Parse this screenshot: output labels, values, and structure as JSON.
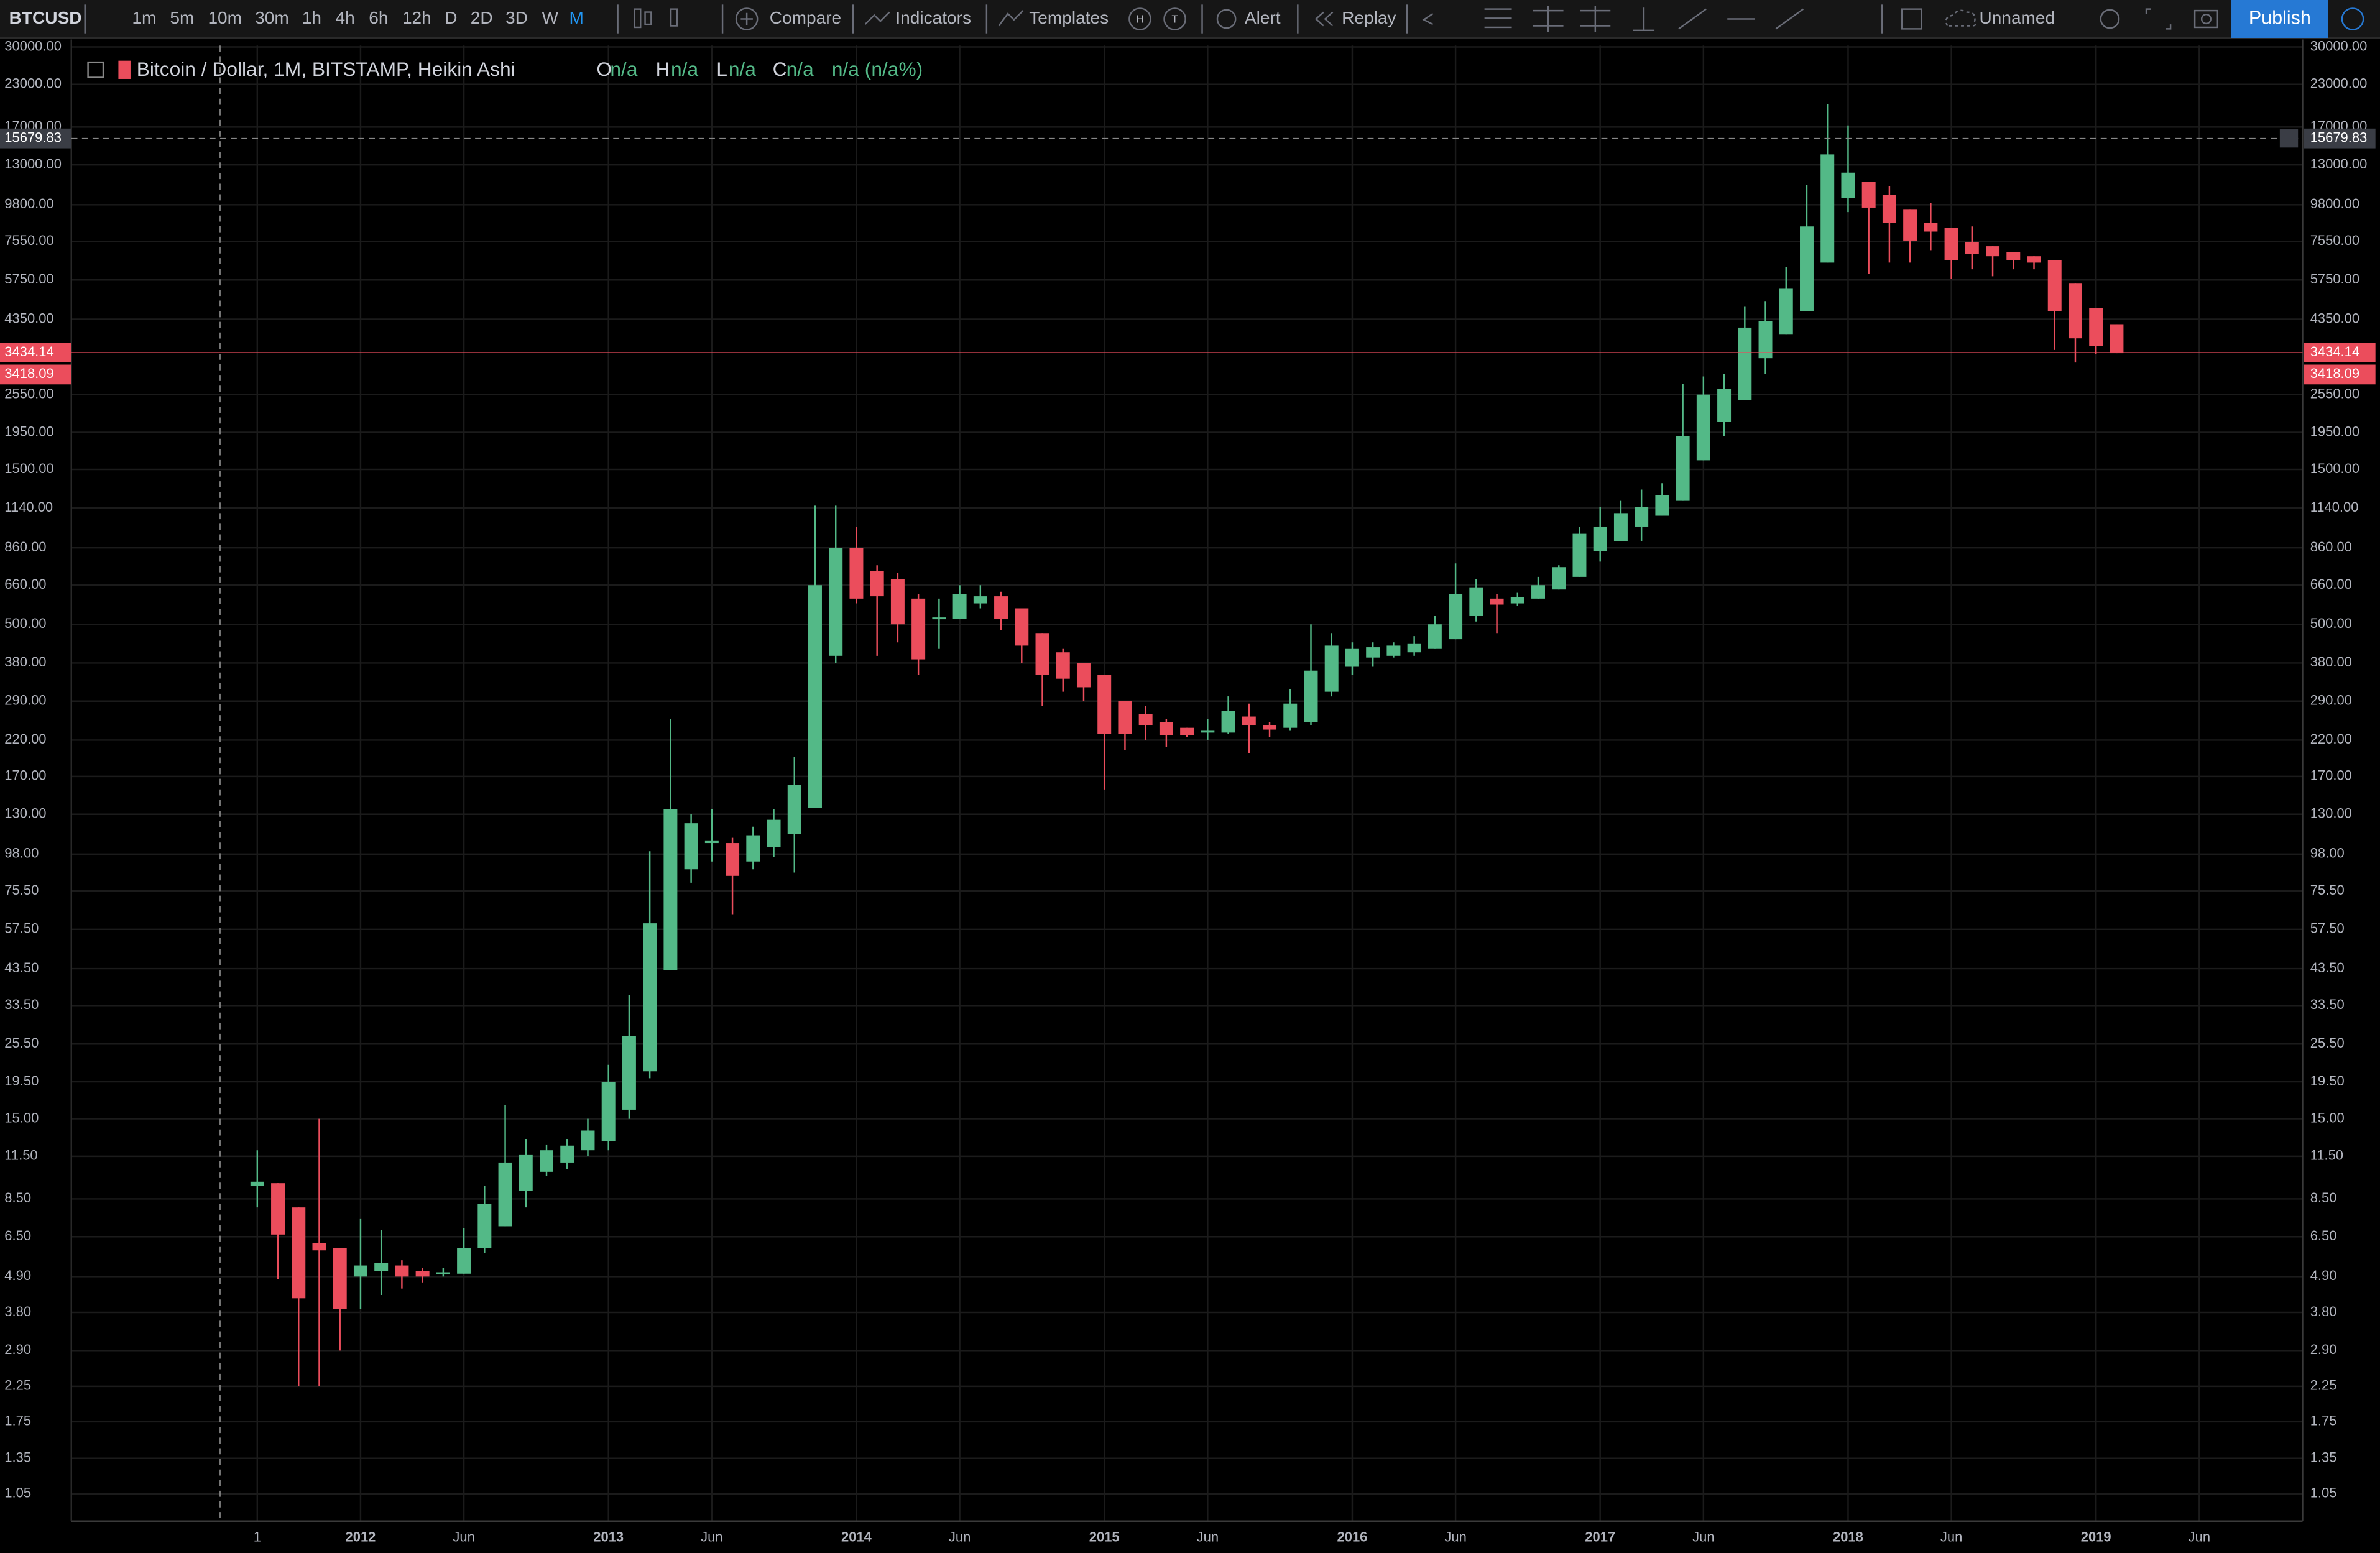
{
  "toolbar": {
    "symbol": "BTCUSD",
    "intervals": [
      "1m",
      "5m",
      "10m",
      "30m",
      "1h",
      "4h",
      "6h",
      "12h",
      "D",
      "2D",
      "3D",
      "W",
      "M"
    ],
    "compare": "Compare",
    "indicators": "Indicators",
    "templates": "Templates",
    "hotkey_h": "H",
    "hotkey_t": "T",
    "alert": "Alert",
    "replay": "Replay",
    "layout_name": "Unnamed",
    "publish": "Publish"
  },
  "chart_data": {
    "type": "candlestick",
    "title": "Bitcoin / Dollar, 1M, BITSTAMP, Heikin Ashi",
    "legend": [
      {
        "label": "O",
        "value": "n/a"
      },
      {
        "label": "H",
        "value": "n/a"
      },
      {
        "label": "L",
        "value": "n/a"
      },
      {
        "label": "C",
        "value": "n/a"
      }
    ],
    "change": "n/a (n/a%)",
    "up_color": "#53b987",
    "down_color": "#eb4d5c",
    "log_scale": true,
    "grid": true,
    "x": [
      "2011-08",
      "2011-09",
      "2011-10",
      "2011-11",
      "2011-12",
      "2012-01",
      "2012-02",
      "2012-03",
      "2012-04",
      "2012-05",
      "2012-06",
      "2012-07",
      "2012-08",
      "2012-09",
      "2012-10",
      "2012-11",
      "2012-12",
      "2013-01",
      "2013-02",
      "2013-03",
      "2013-04",
      "2013-05",
      "2013-06",
      "2013-07",
      "2013-08",
      "2013-09",
      "2013-10",
      "2013-11",
      "2013-12",
      "2014-01",
      "2014-02",
      "2014-03",
      "2014-04",
      "2014-05",
      "2014-06",
      "2014-07",
      "2014-08",
      "2014-09",
      "2014-10",
      "2014-11",
      "2014-12",
      "2015-01",
      "2015-02",
      "2015-03",
      "2015-04",
      "2015-05",
      "2015-06",
      "2015-07",
      "2015-08",
      "2015-09",
      "2015-10",
      "2015-11",
      "2015-12",
      "2016-01",
      "2016-02",
      "2016-03",
      "2016-04",
      "2016-05",
      "2016-06",
      "2016-07",
      "2016-08",
      "2016-09",
      "2016-10",
      "2016-11",
      "2016-12",
      "2017-01",
      "2017-02",
      "2017-03",
      "2017-04",
      "2017-05",
      "2017-06",
      "2017-07",
      "2017-08",
      "2017-09",
      "2017-10",
      "2017-11",
      "2017-12",
      "2018-01",
      "2018-02",
      "2018-03",
      "2018-04",
      "2018-05",
      "2018-06",
      "2018-07",
      "2018-08",
      "2018-09",
      "2018-10",
      "2018-11",
      "2018-12",
      "2019-01",
      "2019-02"
    ],
    "open": [
      9.3,
      9.5,
      8,
      6.2,
      6,
      4.9,
      5.1,
      5.3,
      5.1,
      5.0,
      5.0,
      6.0,
      7,
      9,
      10.3,
      11,
      12,
      12.8,
      16,
      21,
      43,
      88,
      106,
      106,
      93,
      103,
      113,
      136,
      400,
      860,
      730,
      690,
      600,
      520,
      520,
      580,
      610,
      560,
      470,
      410,
      380,
      350,
      290,
      265,
      250,
      240,
      232,
      232,
      260,
      245,
      240,
      250,
      310,
      370,
      395,
      400,
      410,
      420,
      450,
      530,
      600,
      580,
      600,
      640,
      700,
      840,
      900,
      1000,
      1080,
      1200,
      1600,
      2100,
      2450,
      3300,
      3900,
      4600,
      6500,
      10300,
      11500,
      10500,
      9500,
      8600,
      8300,
      7500,
      7300,
      7000,
      6800,
      6600,
      5600,
      4700,
      4200
    ],
    "high": [
      12,
      9.5,
      8,
      15,
      6,
      7.4,
      6.8,
      5.5,
      5.2,
      5.2,
      6.9,
      9.3,
      16.5,
      13,
      12.5,
      13,
      15,
      22,
      36,
      100,
      255,
      130,
      135,
      110,
      119,
      135,
      195,
      1160,
      1160,
      1000,
      760,
      720,
      620,
      600,
      660,
      660,
      630,
      560,
      470,
      420,
      380,
      350,
      290,
      280,
      255,
      240,
      255,
      300,
      285,
      250,
      315,
      500,
      470,
      440,
      440,
      440,
      460,
      530,
      770,
      690,
      620,
      625,
      700,
      760,
      1000,
      1150,
      1200,
      1300,
      1360,
      2750,
      2900,
      2950,
      4750,
      4950,
      6300,
      11300,
      20000,
      17200,
      11500,
      11200,
      9500,
      9900,
      8300,
      8400,
      7300,
      7000,
      6800,
      6600,
      5600,
      4700,
      4200
    ],
    "low": [
      8,
      4.8,
      2.25,
      2.25,
      2.9,
      3.9,
      4.3,
      4.5,
      4.7,
      4.9,
      5.0,
      5.8,
      7,
      8,
      10,
      10.5,
      11.5,
      12,
      15,
      20,
      43,
      80,
      93,
      64,
      88,
      96,
      86,
      136,
      380,
      580,
      400,
      440,
      350,
      420,
      520,
      560,
      480,
      380,
      280,
      310,
      290,
      155,
      205,
      220,
      210,
      225,
      220,
      230,
      200,
      225,
      235,
      245,
      300,
      350,
      370,
      395,
      400,
      420,
      450,
      510,
      470,
      570,
      600,
      640,
      700,
      780,
      900,
      900,
      1080,
      1200,
      1600,
      1900,
      2450,
      2950,
      3900,
      4600,
      6500,
      9300,
      6000,
      6500,
      6500,
      7100,
      5800,
      6200,
      5900,
      6200,
      6200,
      3500,
      3200,
      3400,
      3420
    ],
    "close": [
      9.6,
      6.6,
      4.2,
      5.9,
      3.9,
      5.3,
      5.4,
      4.9,
      4.9,
      5.05,
      6.0,
      8.2,
      11,
      11.6,
      12,
      12.4,
      13.8,
      19.5,
      27,
      60,
      135,
      122,
      108,
      84,
      112,
      125,
      160,
      660,
      860,
      600,
      610,
      500,
      390,
      525,
      620,
      610,
      520,
      430,
      350,
      340,
      320,
      230,
      230,
      245,
      228,
      228,
      235,
      270,
      245,
      237,
      285,
      360,
      430,
      420,
      425,
      430,
      435,
      500,
      620,
      650,
      575,
      605,
      660,
      750,
      950,
      1000,
      1100,
      1150,
      1250,
      1900,
      2550,
      2650,
      4100,
      4300,
      5400,
      8400,
      14000,
      12300,
      9600,
      8600,
      7600,
      8100,
      6600,
      6900,
      6800,
      6600,
      6500,
      4600,
      3800,
      3600,
      3420
    ],
    "xlim": [
      "2010-11",
      "2019-11"
    ],
    "xticks": [
      {
        "value": "2011-08",
        "label": "1"
      },
      {
        "value": "2012-01",
        "label": "2012"
      },
      {
        "value": "2012-06",
        "label": "Jun"
      },
      {
        "value": "2013-01",
        "label": "2013"
      },
      {
        "value": "2013-06",
        "label": "Jun"
      },
      {
        "value": "2014-01",
        "label": "2014"
      },
      {
        "value": "2014-06",
        "label": "Jun"
      },
      {
        "value": "2015-01",
        "label": "2015"
      },
      {
        "value": "2015-06",
        "label": "Jun"
      },
      {
        "value": "2016-01",
        "label": "2016"
      },
      {
        "value": "2016-06",
        "label": "Jun"
      },
      {
        "value": "2017-01",
        "label": "2017"
      },
      {
        "value": "2017-06",
        "label": "Jun"
      },
      {
        "value": "2018-01",
        "label": "2018"
      },
      {
        "value": "2018-06",
        "label": "Jun"
      },
      {
        "value": "2019-01",
        "label": "2019"
      },
      {
        "value": "2019-06",
        "label": "Jun"
      }
    ],
    "ylim": [
      0.865,
      30300
    ],
    "yticks": [
      1.05,
      1.35,
      1.75,
      2.25,
      {
        "value": 2.9,
        "label": "2.90"
      },
      {
        "value": 3.8,
        "label": "3.80"
      },
      {
        "value": 4.9,
        "label": "4.90"
      },
      {
        "value": 6.5,
        "label": "6.50"
      },
      {
        "value": 8.5,
        "label": "8.50"
      },
      {
        "value": 11.5,
        "label": "11.50"
      },
      {
        "value": 15,
        "label": "15.00"
      },
      {
        "value": 19.5,
        "label": "19.50"
      },
      {
        "value": 25.5,
        "label": "25.50"
      },
      {
        "value": 33.5,
        "label": "33.50"
      },
      {
        "value": 43.5,
        "label": "43.50"
      },
      {
        "value": 57.5,
        "label": "57.50"
      },
      {
        "value": 75.5,
        "label": "75.50"
      },
      {
        "value": 98,
        "label": "98.00"
      },
      {
        "value": 130,
        "label": "130.00"
      },
      {
        "value": 170,
        "label": "170.00"
      },
      {
        "value": 220,
        "label": "220.00"
      },
      {
        "value": 290,
        "label": "290.00"
      },
      {
        "value": 380,
        "label": "380.00"
      },
      {
        "value": 500,
        "label": "500.00"
      },
      {
        "value": 660,
        "label": "660.00"
      },
      {
        "value": 860,
        "label": "860.00"
      },
      {
        "value": 1140,
        "label": "1140.00"
      },
      {
        "value": 1500,
        "label": "1500.00"
      },
      {
        "value": 1950,
        "label": "1950.00"
      },
      {
        "value": 2550,
        "label": "2550.00"
      },
      {
        "value": 4350,
        "label": "4350.00"
      },
      {
        "value": 5750,
        "label": "5750.00"
      },
      {
        "value": 7550,
        "label": "7550.00"
      },
      {
        "value": 9800,
        "label": "9800.00"
      },
      {
        "value": 13000,
        "label": "13000.00"
      },
      {
        "value": 17000,
        "label": "17000.00"
      },
      {
        "value": 23000,
        "label": "23000.00"
      },
      {
        "value": 30000,
        "label": "30000.00"
      }
    ],
    "crosshair_price": 15679.83,
    "price_labels": [
      3434.14,
      3418.09
    ]
  }
}
